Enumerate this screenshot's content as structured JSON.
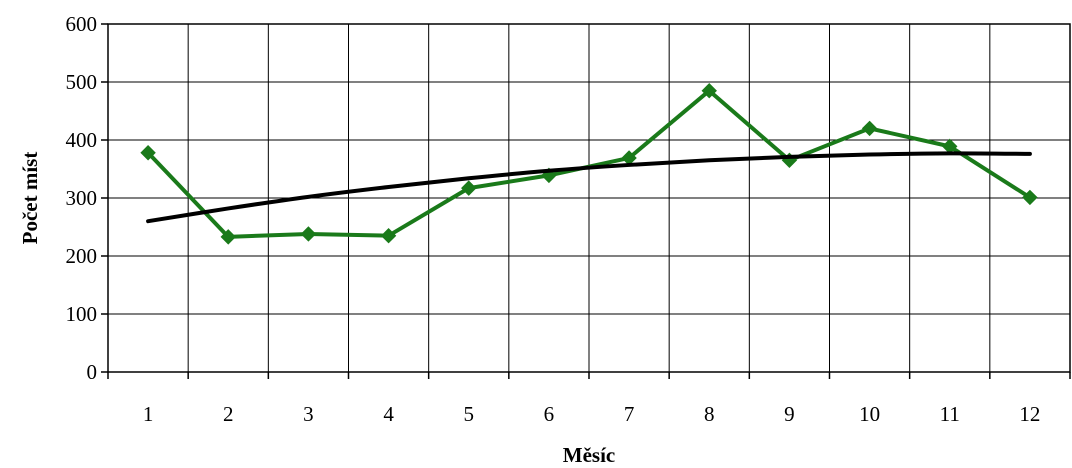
{
  "chart_data": {
    "type": "line",
    "title": "",
    "xlabel": "Měsíc",
    "ylabel": "Počet míst",
    "categories": [
      "1",
      "2",
      "3",
      "4",
      "5",
      "6",
      "7",
      "8",
      "9",
      "10",
      "11",
      "12"
    ],
    "series": [
      {
        "values": [
          378,
          233,
          238,
          235,
          317,
          339,
          369,
          485,
          365,
          420,
          389,
          301
        ],
        "color": "#1a7a1a",
        "marker": "diamond"
      },
      {
        "values": [
          260,
          282,
          302,
          319,
          334,
          347,
          357,
          365,
          371,
          375,
          377,
          376
        ],
        "color": "#000000",
        "marker": "none",
        "kind": "trend"
      }
    ],
    "ylim": [
      0,
      600
    ],
    "yticks": [
      0,
      100,
      200,
      300,
      400,
      500,
      600
    ],
    "grid": true,
    "legend": "none"
  }
}
